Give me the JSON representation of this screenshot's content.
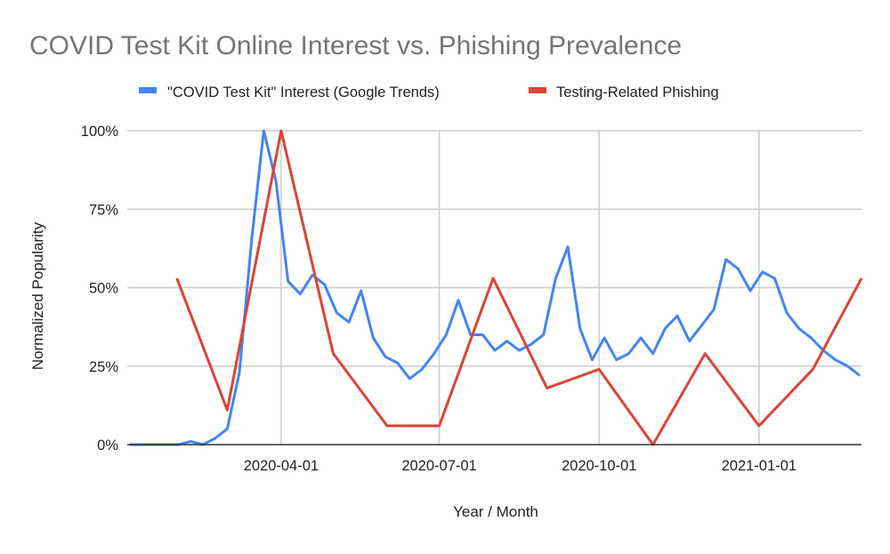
{
  "chart_data": {
    "type": "line",
    "title": "COVID Test Kit Online Interest vs. Phishing Prevalence",
    "xlabel": "Year / Month",
    "ylabel": "Normalized Popularity",
    "xlim": [
      "2020-01-05",
      "2021-03-01"
    ],
    "ylim": [
      0,
      100
    ],
    "y_ticks": [
      0,
      25,
      50,
      75,
      100
    ],
    "y_tick_labels": [
      "0%",
      "25%",
      "50%",
      "75%",
      "100%"
    ],
    "x_ticks": [
      "2020-04-01",
      "2020-07-01",
      "2020-10-01",
      "2021-01-01"
    ],
    "x_tick_labels": [
      "2020-04-01",
      "2020-07-01",
      "2020-10-01",
      "2021-01-01"
    ],
    "grid": true,
    "legend_position": "top-center",
    "series": [
      {
        "name": "\"COVID Test Kit\" Interest (Google Trends)",
        "color": "#4285f4",
        "x_start": "2020-01-05",
        "x_step_days": 7,
        "values": [
          0,
          0,
          0,
          0,
          0,
          1,
          0,
          2,
          5,
          23,
          65,
          100,
          84,
          52,
          48,
          54,
          51,
          42,
          39,
          49,
          34,
          28,
          26,
          21,
          24,
          29,
          35,
          46,
          35,
          35,
          30,
          33,
          30,
          32,
          35,
          53,
          63,
          37,
          27,
          34,
          27,
          29,
          34,
          29,
          37,
          41,
          33,
          38,
          43,
          59,
          56,
          49,
          55,
          53,
          42,
          37,
          34,
          30,
          27,
          25,
          22
        ]
      },
      {
        "name": "Testing-Related Phishing",
        "color": "#db4437",
        "x": [
          "2020-02-01",
          "2020-03-01",
          "2020-04-01",
          "2020-05-01",
          "2020-06-01",
          "2020-07-01",
          "2020-08-01",
          "2020-09-01",
          "2020-10-01",
          "2020-11-01",
          "2020-12-01",
          "2021-01-01",
          "2021-02-01",
          "2021-03-01"
        ],
        "values": [
          53,
          11,
          100,
          29,
          6,
          6,
          53,
          18,
          24,
          0,
          29,
          6,
          24,
          53
        ]
      }
    ]
  }
}
